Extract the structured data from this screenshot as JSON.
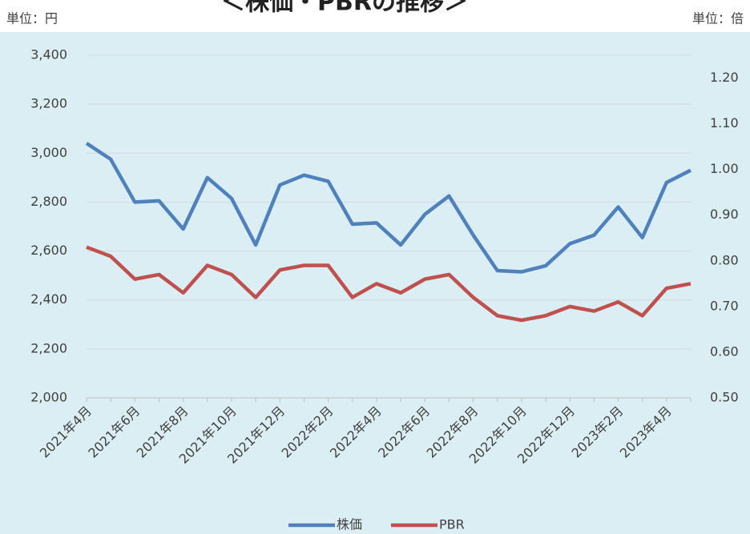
{
  "chart_data": {
    "type": "line",
    "title": "＜株価・PBRの推移＞",
    "y_unit": "単位：円",
    "y2_unit": "単位：倍",
    "categories": [
      "2021年4月",
      null,
      "2021年6月",
      null,
      "2021年8月",
      null,
      "2021年10月",
      null,
      "2021年12月",
      null,
      "2022年2月",
      null,
      "2022年4月",
      null,
      "2022年6月",
      null,
      "2022年8月",
      null,
      "2022年10月",
      null,
      "2022年12月",
      null,
      "2023年2月",
      null,
      "2023年4月",
      null
    ],
    "series": [
      {
        "name": "株価",
        "color": "#4f81bd",
        "values": [
          3040,
          2975,
          2800,
          2805,
          2690,
          2900,
          2815,
          2625,
          2870,
          2910,
          2885,
          2710,
          2715,
          2625,
          2750,
          2825,
          2665,
          2520,
          2515,
          2540,
          2630,
          2665,
          2780,
          2655,
          2880,
          2930
        ]
      },
      {
        "name": "PBR",
        "color": "#c0504d",
        "axis": "y2",
        "values": [
          0.83,
          0.81,
          0.76,
          0.77,
          0.73,
          0.79,
          0.77,
          0.72,
          0.78,
          0.79,
          0.79,
          0.72,
          0.75,
          0.73,
          0.76,
          0.77,
          0.72,
          0.68,
          0.67,
          0.68,
          0.7,
          0.69,
          0.71,
          0.68,
          0.74,
          0.75
        ]
      }
    ],
    "ylim": [
      2000,
      3400
    ],
    "yticks": [
      {
        "value": 2000,
        "label": "2,000"
      },
      {
        "value": 2200,
        "label": "2,200"
      },
      {
        "value": 2400,
        "label": "2,400"
      },
      {
        "value": 2600,
        "label": "2,600"
      },
      {
        "value": 2800,
        "label": "2,800"
      },
      {
        "value": 3000,
        "label": "3,000"
      },
      {
        "value": 3200,
        "label": "3,200"
      },
      {
        "value": 3400,
        "label": "3,400"
      }
    ],
    "y2lim": [
      0.5,
      1.25
    ],
    "y2ticks": [
      {
        "value": 0.5,
        "label": "0.50"
      },
      {
        "value": 0.6,
        "label": "0.60"
      },
      {
        "value": 0.7,
        "label": "0.70"
      },
      {
        "value": 0.8,
        "label": "0.80"
      },
      {
        "value": 0.9,
        "label": "0.90"
      },
      {
        "value": 1.0,
        "label": "1.00"
      },
      {
        "value": 1.1,
        "label": "1.10"
      },
      {
        "value": 1.2,
        "label": "1.20"
      }
    ],
    "grid": true,
    "legend": "bottom",
    "background": "#dbeef4"
  }
}
